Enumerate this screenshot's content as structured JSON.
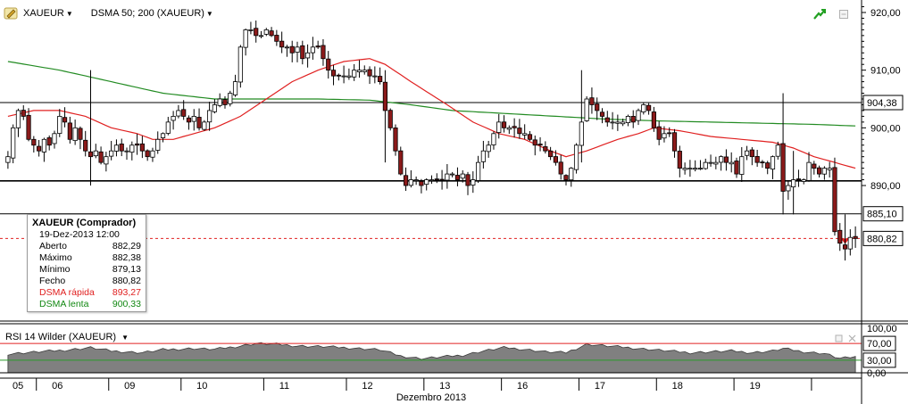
{
  "toolbar": {
    "symbol": "XAUEUR",
    "indicator": "DSMA 50; 200 (XAUEUR)"
  },
  "rsi_panel": {
    "label": "RSI 14 Wilder (XAUEUR)"
  },
  "infobox": {
    "title": "XAUEUR (Comprador)",
    "date": "19-Dez-2013 12:00",
    "rows": [
      {
        "label": "Aberto",
        "value": "882,29",
        "color": "#000000"
      },
      {
        "label": "Máximo",
        "value": "882,38",
        "color": "#000000"
      },
      {
        "label": "Mínimo",
        "value": "879,13",
        "color": "#000000"
      },
      {
        "label": "Fecho",
        "value": "880,82",
        "color": "#000000"
      },
      {
        "label": "DSMA rápida",
        "value": "893,27",
        "color": "#e02020"
      },
      {
        "label": "DSMA lenta",
        "value": "900,33",
        "color": "#118811"
      }
    ]
  },
  "colors": {
    "up_candle": "#ffffff",
    "down_candle": "#8b1a1a",
    "fast_ma": "#e02020",
    "slow_ma": "#228b22",
    "rsi_fill": "#808080",
    "rsi_upper": "#e02020",
    "rsi_lower": "#2a9a2a"
  },
  "chart_data": [
    {
      "type": "candlestick",
      "y_axis": {
        "ticks": [
          "920,00",
          "910,00",
          "900,00",
          "890,00"
        ],
        "tick_values": [
          920,
          910,
          900,
          890
        ],
        "ylim": [
          866.5,
          921.7
        ]
      },
      "x_axis": {
        "ticks": [
          "05",
          "06",
          "09",
          "10",
          "11",
          "12",
          "13",
          "16",
          "17",
          "18",
          "19"
        ],
        "label": "Dezembro 2013"
      },
      "horizontal_lines": [
        {
          "value": 904.38,
          "label": "904,38"
        },
        {
          "value": 890.8,
          "label": ""
        },
        {
          "value": 885.1,
          "label": "885,10"
        }
      ],
      "last_price": {
        "value": 880.82,
        "label": "880,82"
      },
      "anchors": [
        [
          0,
          895
        ],
        [
          1,
          900
        ],
        [
          2,
          903
        ],
        [
          3,
          902
        ],
        [
          4,
          898
        ],
        [
          5,
          897
        ],
        [
          6,
          896
        ],
        [
          7,
          898
        ],
        [
          8,
          897
        ],
        [
          9,
          899
        ],
        [
          10,
          902
        ],
        [
          11,
          901
        ],
        [
          12,
          898
        ],
        [
          13,
          900
        ],
        [
          14,
          898
        ],
        [
          15,
          896
        ],
        [
          16,
          895
        ],
        [
          17,
          896
        ],
        [
          18,
          894
        ],
        [
          19,
          895
        ],
        [
          20,
          896
        ],
        [
          21,
          897
        ],
        [
          22,
          896
        ],
        [
          23,
          896
        ],
        [
          24,
          897
        ],
        [
          25,
          897
        ],
        [
          26,
          896
        ],
        [
          27,
          895
        ],
        [
          28,
          896
        ],
        [
          29,
          898
        ],
        [
          30,
          899
        ],
        [
          31,
          901
        ],
        [
          32,
          902
        ],
        [
          33,
          903
        ],
        [
          34,
          902
        ],
        [
          35,
          901
        ],
        [
          36,
          902
        ],
        [
          37,
          900
        ],
        [
          38,
          901
        ],
        [
          39,
          903
        ],
        [
          40,
          904
        ],
        [
          41,
          905
        ],
        [
          42,
          904
        ],
        [
          43,
          906
        ],
        [
          44,
          908
        ],
        [
          45,
          914
        ],
        [
          46,
          917
        ],
        [
          47,
          917
        ],
        [
          48,
          916
        ],
        [
          49,
          916
        ],
        [
          50,
          917
        ],
        [
          51,
          916
        ],
        [
          52,
          915
        ],
        [
          53,
          914
        ],
        [
          54,
          914
        ],
        [
          55,
          913
        ],
        [
          56,
          914
        ],
        [
          57,
          912
        ],
        [
          58,
          913
        ],
        [
          59,
          914
        ],
        [
          60,
          914
        ],
        [
          61,
          912
        ],
        [
          62,
          910
        ],
        [
          63,
          909
        ],
        [
          64,
          909
        ],
        [
          65,
          909
        ],
        [
          66,
          909
        ],
        [
          67,
          910
        ],
        [
          68,
          910
        ],
        [
          69,
          910
        ],
        [
          70,
          909
        ],
        [
          71,
          909
        ],
        [
          72,
          908
        ],
        [
          73,
          903
        ],
        [
          74,
          900
        ],
        [
          75,
          896
        ],
        [
          76,
          892
        ],
        [
          77,
          890
        ],
        [
          78,
          891
        ],
        [
          79,
          891
        ],
        [
          80,
          890
        ],
        [
          81,
          891
        ],
        [
          82,
          891
        ],
        [
          83,
          891
        ],
        [
          84,
          891
        ],
        [
          85,
          892
        ],
        [
          86,
          892
        ],
        [
          87,
          891
        ],
        [
          88,
          892
        ],
        [
          89,
          890
        ],
        [
          90,
          891
        ],
        [
          91,
          894
        ],
        [
          92,
          896
        ],
        [
          93,
          897
        ],
        [
          94,
          899
        ],
        [
          95,
          901
        ],
        [
          96,
          900
        ],
        [
          97,
          900
        ],
        [
          98,
          900
        ],
        [
          99,
          899
        ],
        [
          100,
          899
        ],
        [
          101,
          898
        ],
        [
          102,
          897
        ],
        [
          103,
          897
        ],
        [
          104,
          896
        ],
        [
          105,
          895
        ],
        [
          106,
          894
        ],
        [
          107,
          892
        ],
        [
          108,
          891
        ],
        [
          109,
          893
        ],
        [
          110,
          897
        ],
        [
          111,
          901
        ],
        [
          112,
          905
        ],
        [
          113,
          904
        ],
        [
          114,
          903
        ],
        [
          115,
          902
        ],
        [
          116,
          901
        ],
        [
          117,
          901
        ],
        [
          118,
          901
        ],
        [
          119,
          901
        ],
        [
          120,
          902
        ],
        [
          121,
          901
        ],
        [
          122,
          903
        ],
        [
          123,
          904
        ],
        [
          124,
          903
        ],
        [
          125,
          900
        ],
        [
          126,
          898
        ],
        [
          127,
          899
        ],
        [
          128,
          899
        ],
        [
          129,
          896
        ],
        [
          130,
          893
        ],
        [
          131,
          893
        ],
        [
          132,
          893
        ],
        [
          133,
          893
        ],
        [
          134,
          893
        ],
        [
          135,
          894
        ],
        [
          136,
          894
        ],
        [
          137,
          894
        ],
        [
          138,
          895
        ],
        [
          139,
          894
        ],
        [
          140,
          894
        ],
        [
          141,
          892
        ],
        [
          142,
          895
        ],
        [
          143,
          896
        ],
        [
          144,
          895
        ],
        [
          145,
          894
        ],
        [
          146,
          894
        ],
        [
          147,
          893
        ],
        [
          148,
          895
        ],
        [
          149,
          897
        ],
        [
          150,
          889
        ],
        [
          151,
          890
        ],
        [
          152,
          891
        ],
        [
          153,
          891
        ],
        [
          154,
          891
        ],
        [
          155,
          894
        ],
        [
          156,
          893
        ],
        [
          157,
          892
        ],
        [
          158,
          893
        ],
        [
          159,
          893
        ],
        [
          160,
          882
        ],
        [
          161,
          880
        ],
        [
          162,
          879
        ],
        [
          163,
          881
        ],
        [
          164,
          880.82
        ]
      ],
      "spikes": [
        {
          "i": 16,
          "high": 910,
          "low": 890
        },
        {
          "i": 150,
          "high": 906,
          "low": 885
        },
        {
          "i": 152,
          "high": 896,
          "low": 885
        },
        {
          "i": 162,
          "high": 885,
          "low": 877
        },
        {
          "i": 73,
          "high": 910,
          "low": 894
        },
        {
          "i": 111,
          "high": 910,
          "low": 894
        }
      ],
      "fast_ma": [
        [
          0,
          902
        ],
        [
          5,
          903
        ],
        [
          10,
          903
        ],
        [
          15,
          902
        ],
        [
          20,
          900
        ],
        [
          25,
          899
        ],
        [
          28,
          898
        ],
        [
          32,
          898
        ],
        [
          36,
          899
        ],
        [
          40,
          900
        ],
        [
          45,
          902
        ],
        [
          50,
          905
        ],
        [
          55,
          908
        ],
        [
          60,
          910
        ],
        [
          65,
          911.5
        ],
        [
          70,
          912
        ],
        [
          73,
          911
        ],
        [
          78,
          908
        ],
        [
          85,
          904
        ],
        [
          90,
          901
        ],
        [
          95,
          899
        ],
        [
          100,
          898
        ],
        [
          105,
          896
        ],
        [
          108,
          895
        ],
        [
          112,
          896
        ],
        [
          118,
          898
        ],
        [
          122,
          899
        ],
        [
          125,
          900
        ],
        [
          130,
          899.5
        ],
        [
          136,
          898.5
        ],
        [
          142,
          898
        ],
        [
          148,
          897.5
        ],
        [
          152,
          896.5
        ],
        [
          156,
          895
        ],
        [
          160,
          894
        ],
        [
          164,
          893
        ]
      ],
      "slow_ma": [
        [
          0,
          911.5
        ],
        [
          10,
          910
        ],
        [
          20,
          908
        ],
        [
          30,
          906
        ],
        [
          40,
          905
        ],
        [
          48,
          905
        ],
        [
          60,
          905
        ],
        [
          70,
          904.8
        ],
        [
          78,
          904
        ],
        [
          86,
          903
        ],
        [
          96,
          902.5
        ],
        [
          106,
          902
        ],
        [
          116,
          901.5
        ],
        [
          126,
          901.2
        ],
        [
          136,
          901
        ],
        [
          146,
          900.8
        ],
        [
          156,
          900.6
        ],
        [
          164,
          900.33
        ]
      ]
    },
    {
      "type": "area",
      "name": "RSI 14 Wilder",
      "y_axis": {
        "ticks": [
          "100,00",
          "70,00",
          "30,00",
          "0,00"
        ],
        "tick_values": [
          100,
          70,
          30,
          0
        ],
        "ylim": [
          0,
          100
        ]
      },
      "levels": [
        70,
        30
      ],
      "values": [
        [
          0,
          45
        ],
        [
          6,
          50
        ],
        [
          12,
          55
        ],
        [
          16,
          60
        ],
        [
          20,
          52
        ],
        [
          26,
          48
        ],
        [
          30,
          55
        ],
        [
          36,
          58
        ],
        [
          40,
          56
        ],
        [
          45,
          64
        ],
        [
          48,
          70
        ],
        [
          52,
          68
        ],
        [
          56,
          64
        ],
        [
          62,
          62
        ],
        [
          68,
          58
        ],
        [
          72,
          55
        ],
        [
          76,
          40
        ],
        [
          80,
          34
        ],
        [
          84,
          38
        ],
        [
          88,
          42
        ],
        [
          92,
          52
        ],
        [
          96,
          60
        ],
        [
          100,
          56
        ],
        [
          104,
          50
        ],
        [
          108,
          48
        ],
        [
          110,
          58
        ],
        [
          112,
          68
        ],
        [
          116,
          64
        ],
        [
          120,
          60
        ],
        [
          124,
          56
        ],
        [
          128,
          52
        ],
        [
          132,
          48
        ],
        [
          136,
          50
        ],
        [
          140,
          52
        ],
        [
          144,
          48
        ],
        [
          148,
          52
        ],
        [
          150,
          58
        ],
        [
          154,
          50
        ],
        [
          158,
          46
        ],
        [
          161,
          34
        ],
        [
          164,
          38
        ]
      ]
    }
  ]
}
